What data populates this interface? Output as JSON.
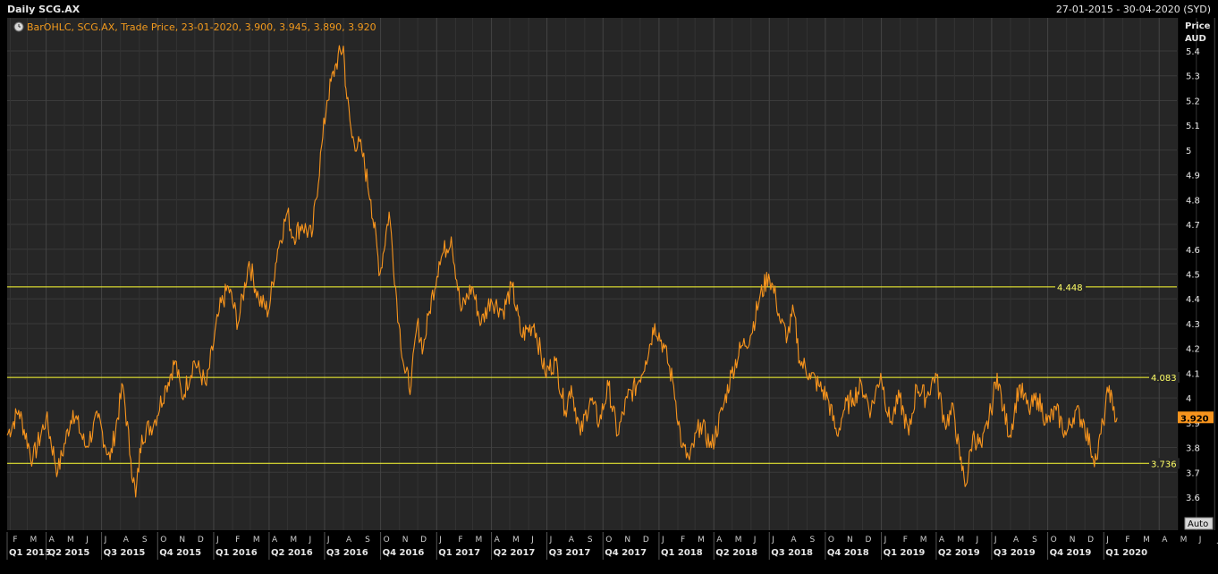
{
  "window": {
    "title": "Daily SCG.AX",
    "date_range": "27-01-2015 - 30-04-2020 (SYD)"
  },
  "legend": {
    "text": "BarOHLC, SCG.AX, Trade Price, 23-01-2020, 3.900, 3.945, 3.890, 3.920"
  },
  "axis": {
    "unit_line1": "Price",
    "unit_line2": "AUD",
    "auto_label": "Auto"
  },
  "colors": {
    "background": "#262626",
    "price_series": "#f7941d",
    "reference_lines": "#ffff33",
    "last_price_badge": "#f7941d"
  },
  "chart_data": {
    "type": "line",
    "title": "Daily SCG.AX",
    "xlabel": "",
    "ylabel": "Price AUD",
    "ylim": [
      3.5,
      5.45
    ],
    "y_ticks": [
      3.6,
      3.7,
      3.8,
      3.9,
      4,
      4.1,
      4.2,
      4.3,
      4.4,
      4.5,
      4.6,
      4.7,
      4.8,
      4.9,
      5,
      5.1,
      5.2,
      5.3,
      5.4
    ],
    "x_range": [
      "2015-01-27",
      "2020-04-30"
    ],
    "months": [
      "F",
      "M",
      "A",
      "M",
      "J",
      "J",
      "A",
      "S",
      "O",
      "N",
      "D",
      "J",
      "F",
      "M",
      "A",
      "M",
      "J",
      "J",
      "A",
      "S",
      "O",
      "N",
      "D",
      "J",
      "F",
      "M",
      "A",
      "M",
      "J",
      "J",
      "A",
      "S",
      "O",
      "N",
      "D",
      "J",
      "F",
      "M",
      "A",
      "M",
      "J",
      "J",
      "A",
      "S",
      "O",
      "N",
      "D",
      "J",
      "F",
      "M",
      "A",
      "M",
      "J",
      "J",
      "A",
      "S",
      "O",
      "N",
      "D",
      "J",
      "F",
      "M",
      "A",
      "M",
      "J",
      "J",
      "A",
      "S",
      "O",
      "N",
      "D",
      "J",
      "F",
      "M",
      "A"
    ],
    "quarters": [
      "Q1 2015",
      "Q2 2015",
      "Q3 2015",
      "Q4 2015",
      "Q1 2016",
      "Q2 2016",
      "Q3 2016",
      "Q4 2016",
      "Q1 2017",
      "Q2 2017",
      "Q3 2017",
      "Q4 2017",
      "Q1 2018",
      "Q2 2018",
      "Q3 2018",
      "Q4 2018",
      "Q1 2019",
      "Q2 2019",
      "Q3 2019",
      "Q4 2019",
      "Q1 2020"
    ],
    "reference_lines": [
      4.448,
      4.083,
      3.736
    ],
    "reference_labels": [
      "4.448",
      "4.083",
      "3.736"
    ],
    "last_price": 3.92,
    "last_price_label": "3.920",
    "grid": true,
    "legend_position": "top-left",
    "series": [
      {
        "x": [
          "2015-01-27",
          "2015-02-15",
          "2015-03-10",
          "2015-04-01",
          "2015-04-20",
          "2015-05-15",
          "2015-06-05",
          "2015-06-25",
          "2015-07-15",
          "2015-08-05",
          "2015-08-18",
          "2015-08-26",
          "2015-09-05",
          "2015-09-25",
          "2015-10-15",
          "2015-10-30",
          "2015-11-10",
          "2015-11-30",
          "2015-12-20",
          "2016-01-10",
          "2016-01-25",
          "2016-02-10",
          "2016-02-28",
          "2016-03-15",
          "2016-03-31",
          "2016-04-15",
          "2016-05-01",
          "2016-05-10",
          "2016-05-25",
          "2016-06-10",
          "2016-06-28",
          "2016-07-05",
          "2016-07-20",
          "2016-08-01",
          "2016-08-05",
          "2016-08-15",
          "2016-08-31",
          "2016-09-15",
          "2016-09-30",
          "2016-10-15",
          "2016-10-31",
          "2016-11-10",
          "2016-11-20",
          "2016-11-30",
          "2016-12-10",
          "2016-12-20",
          "2017-01-05",
          "2017-01-25",
          "2017-02-10",
          "2017-02-28",
          "2017-03-15",
          "2017-03-31",
          "2017-04-20",
          "2017-05-05",
          "2017-05-20",
          "2017-06-10",
          "2017-06-28",
          "2017-07-15",
          "2017-07-31",
          "2017-08-10",
          "2017-08-25",
          "2017-09-10",
          "2017-09-25",
          "2017-10-10",
          "2017-10-25",
          "2017-11-10",
          "2017-11-25",
          "2017-12-10",
          "2017-12-25",
          "2018-01-10",
          "2018-01-25",
          "2018-02-08",
          "2018-02-20",
          "2018-03-10",
          "2018-03-28",
          "2018-04-15",
          "2018-04-30",
          "2018-05-15",
          "2018-05-31",
          "2018-06-15",
          "2018-06-30",
          "2018-07-12",
          "2018-07-20",
          "2018-07-31",
          "2018-08-10",
          "2018-08-20",
          "2018-09-05",
          "2018-09-20",
          "2018-10-05",
          "2018-10-20",
          "2018-10-31",
          "2018-11-15",
          "2018-11-30",
          "2018-12-15",
          "2018-12-31",
          "2019-01-15",
          "2019-01-31",
          "2019-02-15",
          "2019-02-28",
          "2019-03-15",
          "2019-03-31",
          "2019-04-15",
          "2019-04-30",
          "2019-05-10",
          "2019-05-20",
          "2019-05-31",
          "2019-06-15",
          "2019-06-30",
          "2019-07-10",
          "2019-07-20",
          "2019-07-31",
          "2019-08-15",
          "2019-08-31",
          "2019-09-15",
          "2019-09-30",
          "2019-10-15",
          "2019-10-31",
          "2019-11-15",
          "2019-11-30",
          "2019-12-10",
          "2019-12-20",
          "2019-12-31",
          "2020-01-10",
          "2020-01-16",
          "2020-01-23"
        ],
        "y": [
          3.85,
          3.95,
          3.75,
          3.92,
          3.7,
          3.95,
          3.8,
          3.92,
          3.75,
          4.05,
          3.75,
          3.6,
          3.85,
          3.9,
          4.05,
          4.15,
          4.0,
          4.15,
          4.05,
          4.35,
          4.45,
          4.3,
          4.55,
          4.4,
          4.35,
          4.6,
          4.75,
          4.65,
          4.7,
          4.65,
          5.05,
          5.2,
          5.35,
          5.42,
          5.25,
          5.05,
          5.0,
          4.8,
          4.5,
          4.75,
          4.3,
          4.1,
          4.05,
          4.3,
          4.2,
          4.35,
          4.55,
          4.65,
          4.35,
          4.45,
          4.3,
          4.4,
          4.35,
          4.45,
          4.25,
          4.3,
          4.1,
          4.15,
          3.95,
          4.05,
          3.85,
          4.0,
          3.9,
          4.05,
          3.85,
          4.0,
          4.05,
          4.15,
          4.3,
          4.2,
          4.05,
          3.8,
          3.75,
          3.9,
          3.8,
          3.95,
          4.1,
          4.2,
          4.25,
          4.4,
          4.5,
          4.4,
          4.3,
          4.25,
          4.35,
          4.15,
          4.1,
          4.05,
          4.0,
          3.85,
          3.95,
          4.0,
          4.05,
          3.95,
          4.1,
          3.9,
          4.0,
          3.85,
          4.05,
          4.0,
          4.1,
          3.9,
          3.95,
          3.75,
          3.65,
          3.85,
          3.8,
          3.95,
          4.1,
          3.95,
          3.85,
          4.05,
          3.95,
          4.0,
          3.9,
          3.95,
          3.85,
          3.95,
          3.9,
          3.8,
          3.75,
          3.9,
          4.05,
          3.95,
          3.92
        ]
      }
    ]
  }
}
